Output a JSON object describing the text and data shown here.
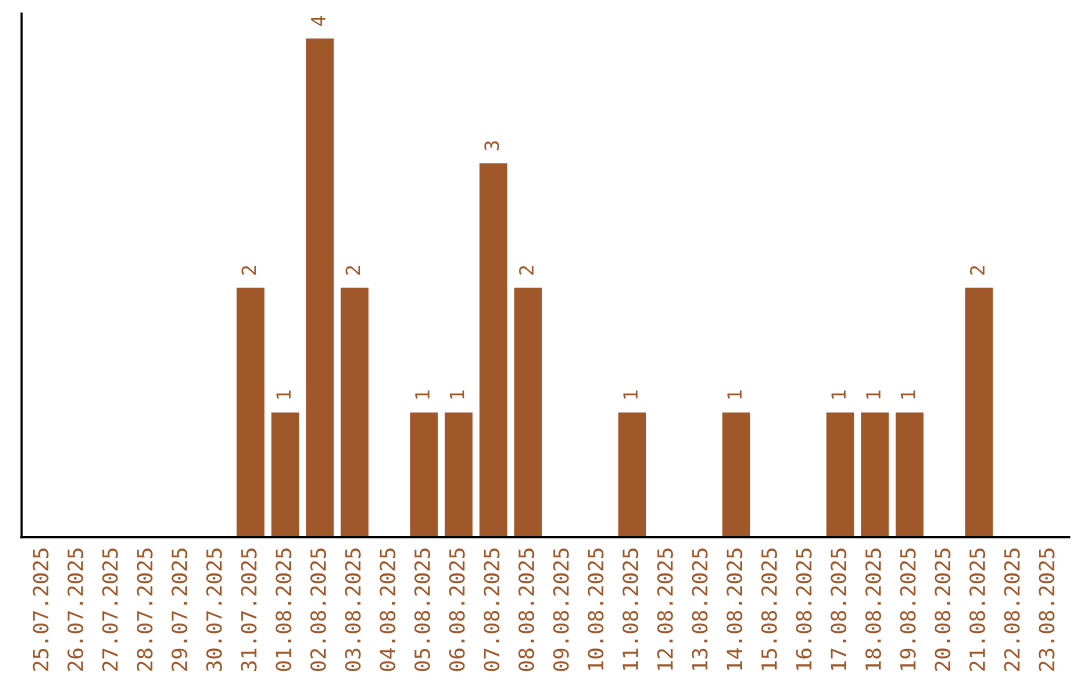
{
  "chart_data": {
    "type": "bar",
    "categories": [
      "25.07.2025",
      "26.07.2025",
      "27.07.2025",
      "28.07.2025",
      "29.07.2025",
      "30.07.2025",
      "31.07.2025",
      "01.08.2025",
      "02.08.2025",
      "03.08.2025",
      "04.08.2025",
      "05.08.2025",
      "06.08.2025",
      "07.08.2025",
      "08.08.2025",
      "09.08.2025",
      "10.08.2025",
      "11.08.2025",
      "12.08.2025",
      "13.08.2025",
      "14.08.2025",
      "15.08.2025",
      "16.08.2025",
      "17.08.2025",
      "18.08.2025",
      "19.08.2025",
      "20.08.2025",
      "21.08.2025",
      "22.08.2025",
      "23.08.2025"
    ],
    "values": [
      0,
      0,
      0,
      0,
      0,
      0,
      2,
      1,
      4,
      2,
      0,
      1,
      1,
      3,
      2,
      0,
      0,
      1,
      0,
      0,
      1,
      0,
      0,
      1,
      1,
      1,
      0,
      2,
      0,
      0
    ],
    "value_labels": [
      null,
      null,
      null,
      null,
      null,
      null,
      "2",
      "1",
      "4",
      "2",
      null,
      "1",
      "1",
      "3",
      "2",
      null,
      null,
      "1",
      null,
      null,
      "1",
      null,
      null,
      "1",
      "1",
      "1",
      null,
      "2",
      null,
      null
    ],
    "color": "#a0572a",
    "grid": false,
    "legend": false
  }
}
